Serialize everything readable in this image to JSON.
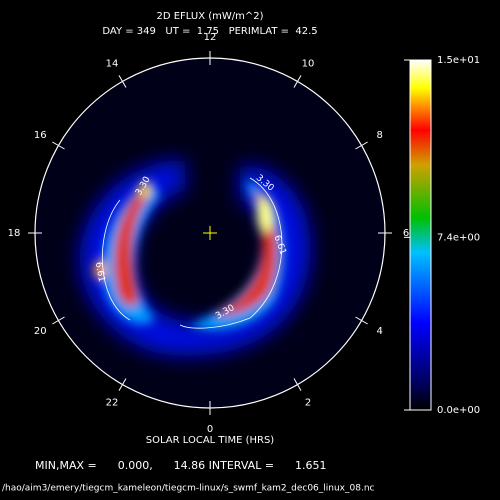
{
  "title": "2D EFLUX (mW/m^2)",
  "subtitle": "DAY = 349   UT =  1.75   PERIMLAT =  42.5",
  "hour_labels": [
    "12",
    "10",
    "8",
    "6",
    "4",
    "2",
    "0",
    "22",
    "20",
    "18",
    "16",
    "14"
  ],
  "colorbar_ticks": [
    {
      "value": 0,
      "label": "0.0e+00"
    },
    {
      "value": 7.4,
      "label": "7.4e+00"
    },
    {
      "value": 15,
      "label": "1.5e+01"
    }
  ],
  "contour_labels": [
    "3.30",
    "6.61",
    "3.30",
    "6.61",
    "3.30"
  ],
  "x_label": "SOLAR LOCAL TIME (HRS)",
  "stats": "MIN,MAX =      0.000,      14.86 INTERVAL =      1.651",
  "file_path": "/hao/aim3/emery/tiegcm_kameleon/tiegcm-linux/s_swmf_kam2_dec06_linux_08.nc"
}
